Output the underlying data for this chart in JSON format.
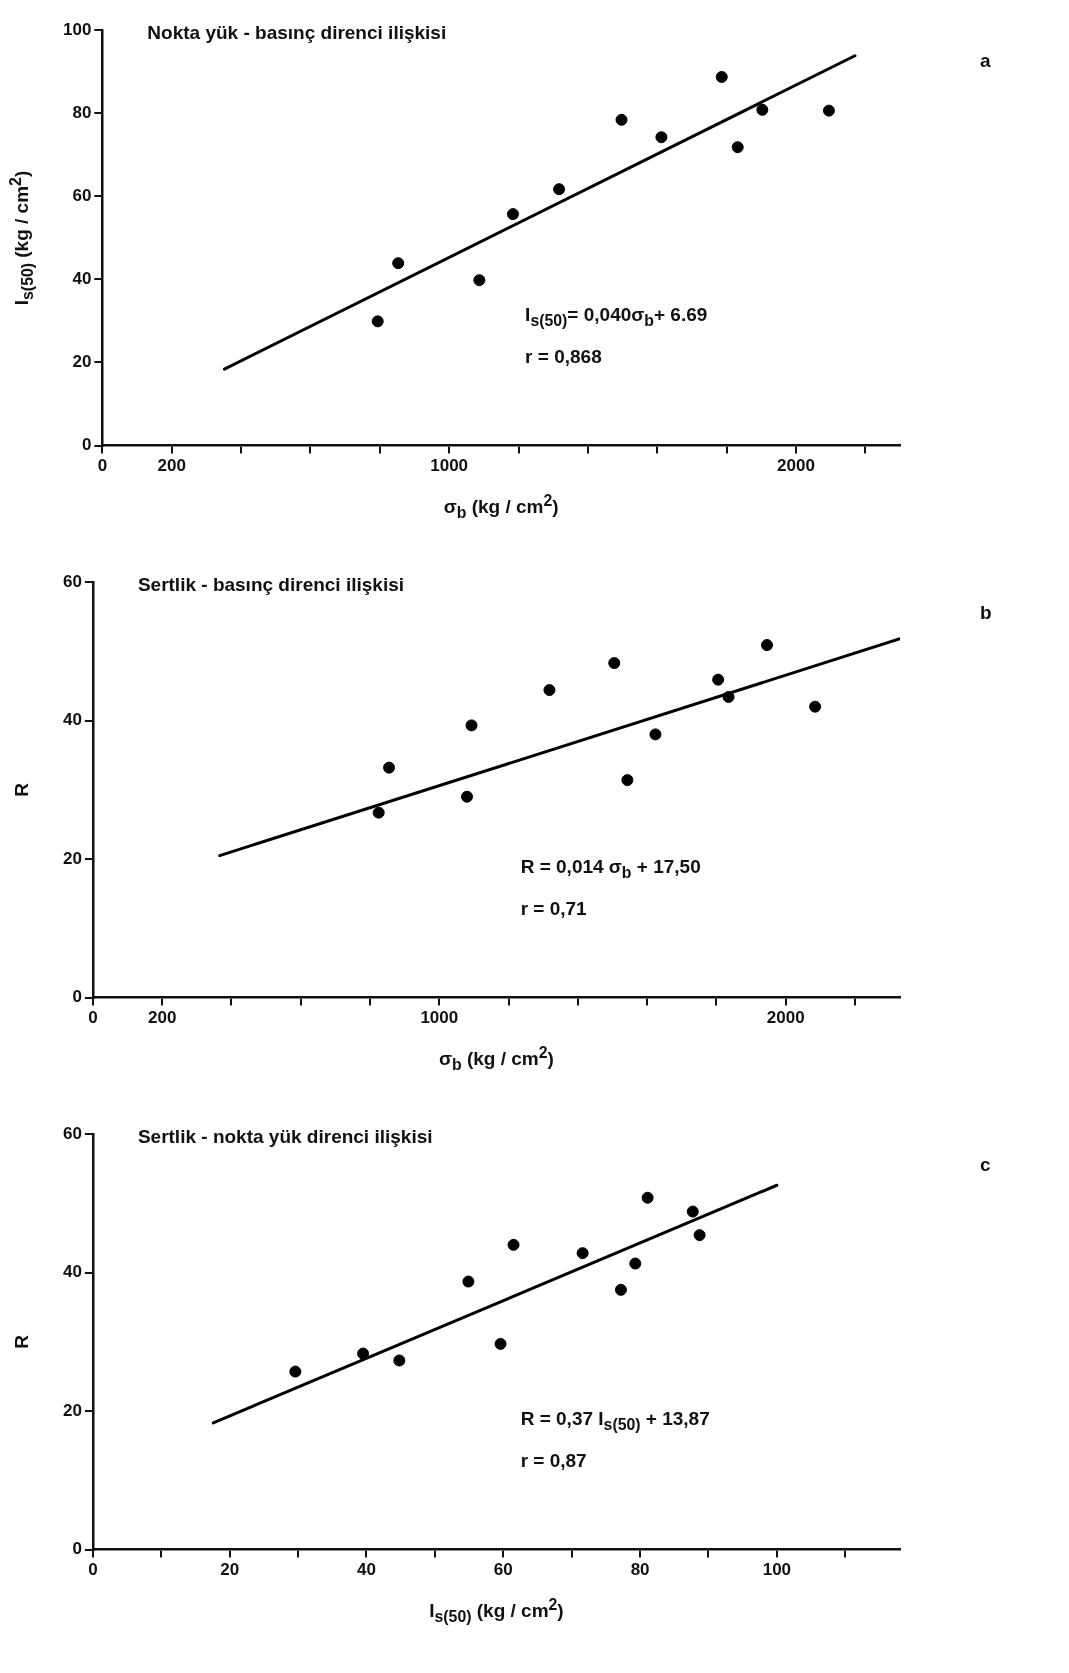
{
  "chart_data": [
    {
      "type": "scatter",
      "title": "Nokta yük - basınç direnci ilişkisi",
      "xlabel": "σ$_{b}$ (kg / cm$^{2}$)",
      "ylabel": "I$_{s(50)}$ (kg / cm$^{2}$)",
      "xlim": [
        0,
        2300
      ],
      "ylim": [
        0,
        100
      ],
      "xticks": [
        0,
        200,
        {
          "value": 400,
          "label": null
        },
        {
          "value": 600,
          "label": null
        },
        {
          "value": 800,
          "label": null
        },
        1000,
        {
          "value": 1200,
          "label": null
        },
        {
          "value": 1400,
          "label": null
        },
        {
          "value": 1600,
          "label": null
        },
        {
          "value": 1800,
          "label": null
        },
        2000,
        {
          "value": 2200,
          "label": null
        }
      ],
      "yticks": [
        0,
        20,
        40,
        60,
        80,
        100
      ],
      "grid": false,
      "legend": false,
      "annotations": [
        "a",
        "I$_{s(50)}$= 0,040σ$_{b}$+ 6.69",
        "r = 0,868"
      ],
      "series": [
        {
          "color": "#000000",
          "marker": "circle",
          "x": [
            794,
            853,
            1087,
            1184,
            1317,
            1497,
            1612,
            1786,
            1832,
            1903,
            2095
          ],
          "values": [
            29.9,
            43.9,
            39.8,
            55.7,
            61.7,
            78.4,
            74.2,
            88.7,
            71.8,
            80.8,
            80.6
          ]
        },
        {
          "type": "line",
          "color": "#000000",
          "marker": "none",
          "x": [
            352,
            2170
          ],
          "values": [
            18.4,
            93.8
          ]
        }
      ]
    },
    {
      "type": "scatter",
      "title": "Sertlik - basınç direnci ilişkisi",
      "xlabel": "σ$_{b}$ (kg / cm$^{2}$)",
      "ylabel": "R",
      "xlim": [
        0,
        2330
      ],
      "ylim": [
        0,
        60
      ],
      "xticks": [
        0,
        200,
        {
          "value": 400,
          "label": null
        },
        {
          "value": 600,
          "label": null
        },
        {
          "value": 800,
          "label": null
        },
        1000,
        {
          "value": 1200,
          "label": null
        },
        {
          "value": 1400,
          "label": null
        },
        {
          "value": 1600,
          "label": null
        },
        {
          "value": 1800,
          "label": null
        },
        2000,
        {
          "value": 2200,
          "label": null
        }
      ],
      "yticks": [
        0,
        20,
        40,
        60
      ],
      "grid": false,
      "legend": false,
      "annotations": [
        "b",
        "R = 0,014 σ$_{b}$ + 17,50",
        "r = 0,71"
      ],
      "series": [
        {
          "color": "#000000",
          "marker": "circle",
          "x": [
            825,
            855,
            1080,
            1093,
            1318,
            1505,
            1543,
            1624,
            1805,
            1835,
            1946,
            2085
          ],
          "values": [
            26.7,
            33.2,
            29.0,
            39.3,
            44.4,
            48.3,
            31.4,
            38.0,
            45.9,
            43.4,
            50.9,
            42.0
          ]
        },
        {
          "type": "line",
          "color": "#000000",
          "marker": "none",
          "x": [
            366,
            2330
          ],
          "values": [
            20.5,
            51.8
          ]
        }
      ]
    },
    {
      "type": "scatter",
      "title": "Sertlik - nokta yük direnci ilişkisi",
      "xlabel": "I$_{s(50)}$ (kg / cm$^{2}$)",
      "ylabel": "R",
      "xlim": [
        0,
        118
      ],
      "ylim": [
        0,
        60
      ],
      "xticks": [
        0,
        {
          "value": 10,
          "label": null
        },
        20,
        {
          "value": 30,
          "label": null
        },
        40,
        {
          "value": 50,
          "label": null
        },
        60,
        {
          "value": 70,
          "label": null
        },
        80,
        {
          "value": 90,
          "label": null
        },
        100,
        {
          "value": 110,
          "label": null
        }
      ],
      "yticks": [
        0,
        20,
        40,
        60
      ],
      "grid": false,
      "legend": false,
      "annotations": [
        "c",
        "R = 0,37 I$_{s(50)}$ + 13,87",
        "r = 0,87"
      ],
      "series": [
        {
          "color": "#000000",
          "marker": "circle",
          "x": [
            29.6,
            39.5,
            44.8,
            54.9,
            59.6,
            61.5,
            71.6,
            77.2,
            79.3,
            81.1,
            87.7,
            88.7
          ],
          "values": [
            25.7,
            28.3,
            27.3,
            38.7,
            29.7,
            44.0,
            42.8,
            37.5,
            41.3,
            50.8,
            48.8,
            45.4
          ]
        },
        {
          "type": "line",
          "color": "#000000",
          "marker": "none",
          "x": [
            17.6,
            100
          ],
          "values": [
            18.3,
            52.6
          ]
        }
      ]
    }
  ]
}
